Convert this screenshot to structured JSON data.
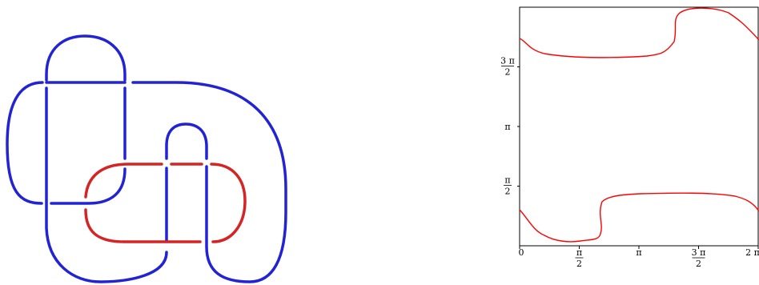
{
  "knot": {
    "colors": {
      "component_a": "#2323d6",
      "component_b": "#d62323"
    }
  },
  "plot": {
    "colors": {
      "curve": "#ff0000",
      "axes": "#000000"
    },
    "x_ticks": [
      {
        "num": "0",
        "den": ""
      },
      {
        "num": "π",
        "den": "2"
      },
      {
        "num": "π",
        "den": ""
      },
      {
        "num": "3 π",
        "den": "2"
      },
      {
        "num": "2 π",
        "den": ""
      }
    ],
    "y_ticks": [
      {
        "num": "π",
        "den": "2"
      },
      {
        "num": "π",
        "den": ""
      },
      {
        "num": "3 π",
        "den": "2"
      }
    ]
  }
}
